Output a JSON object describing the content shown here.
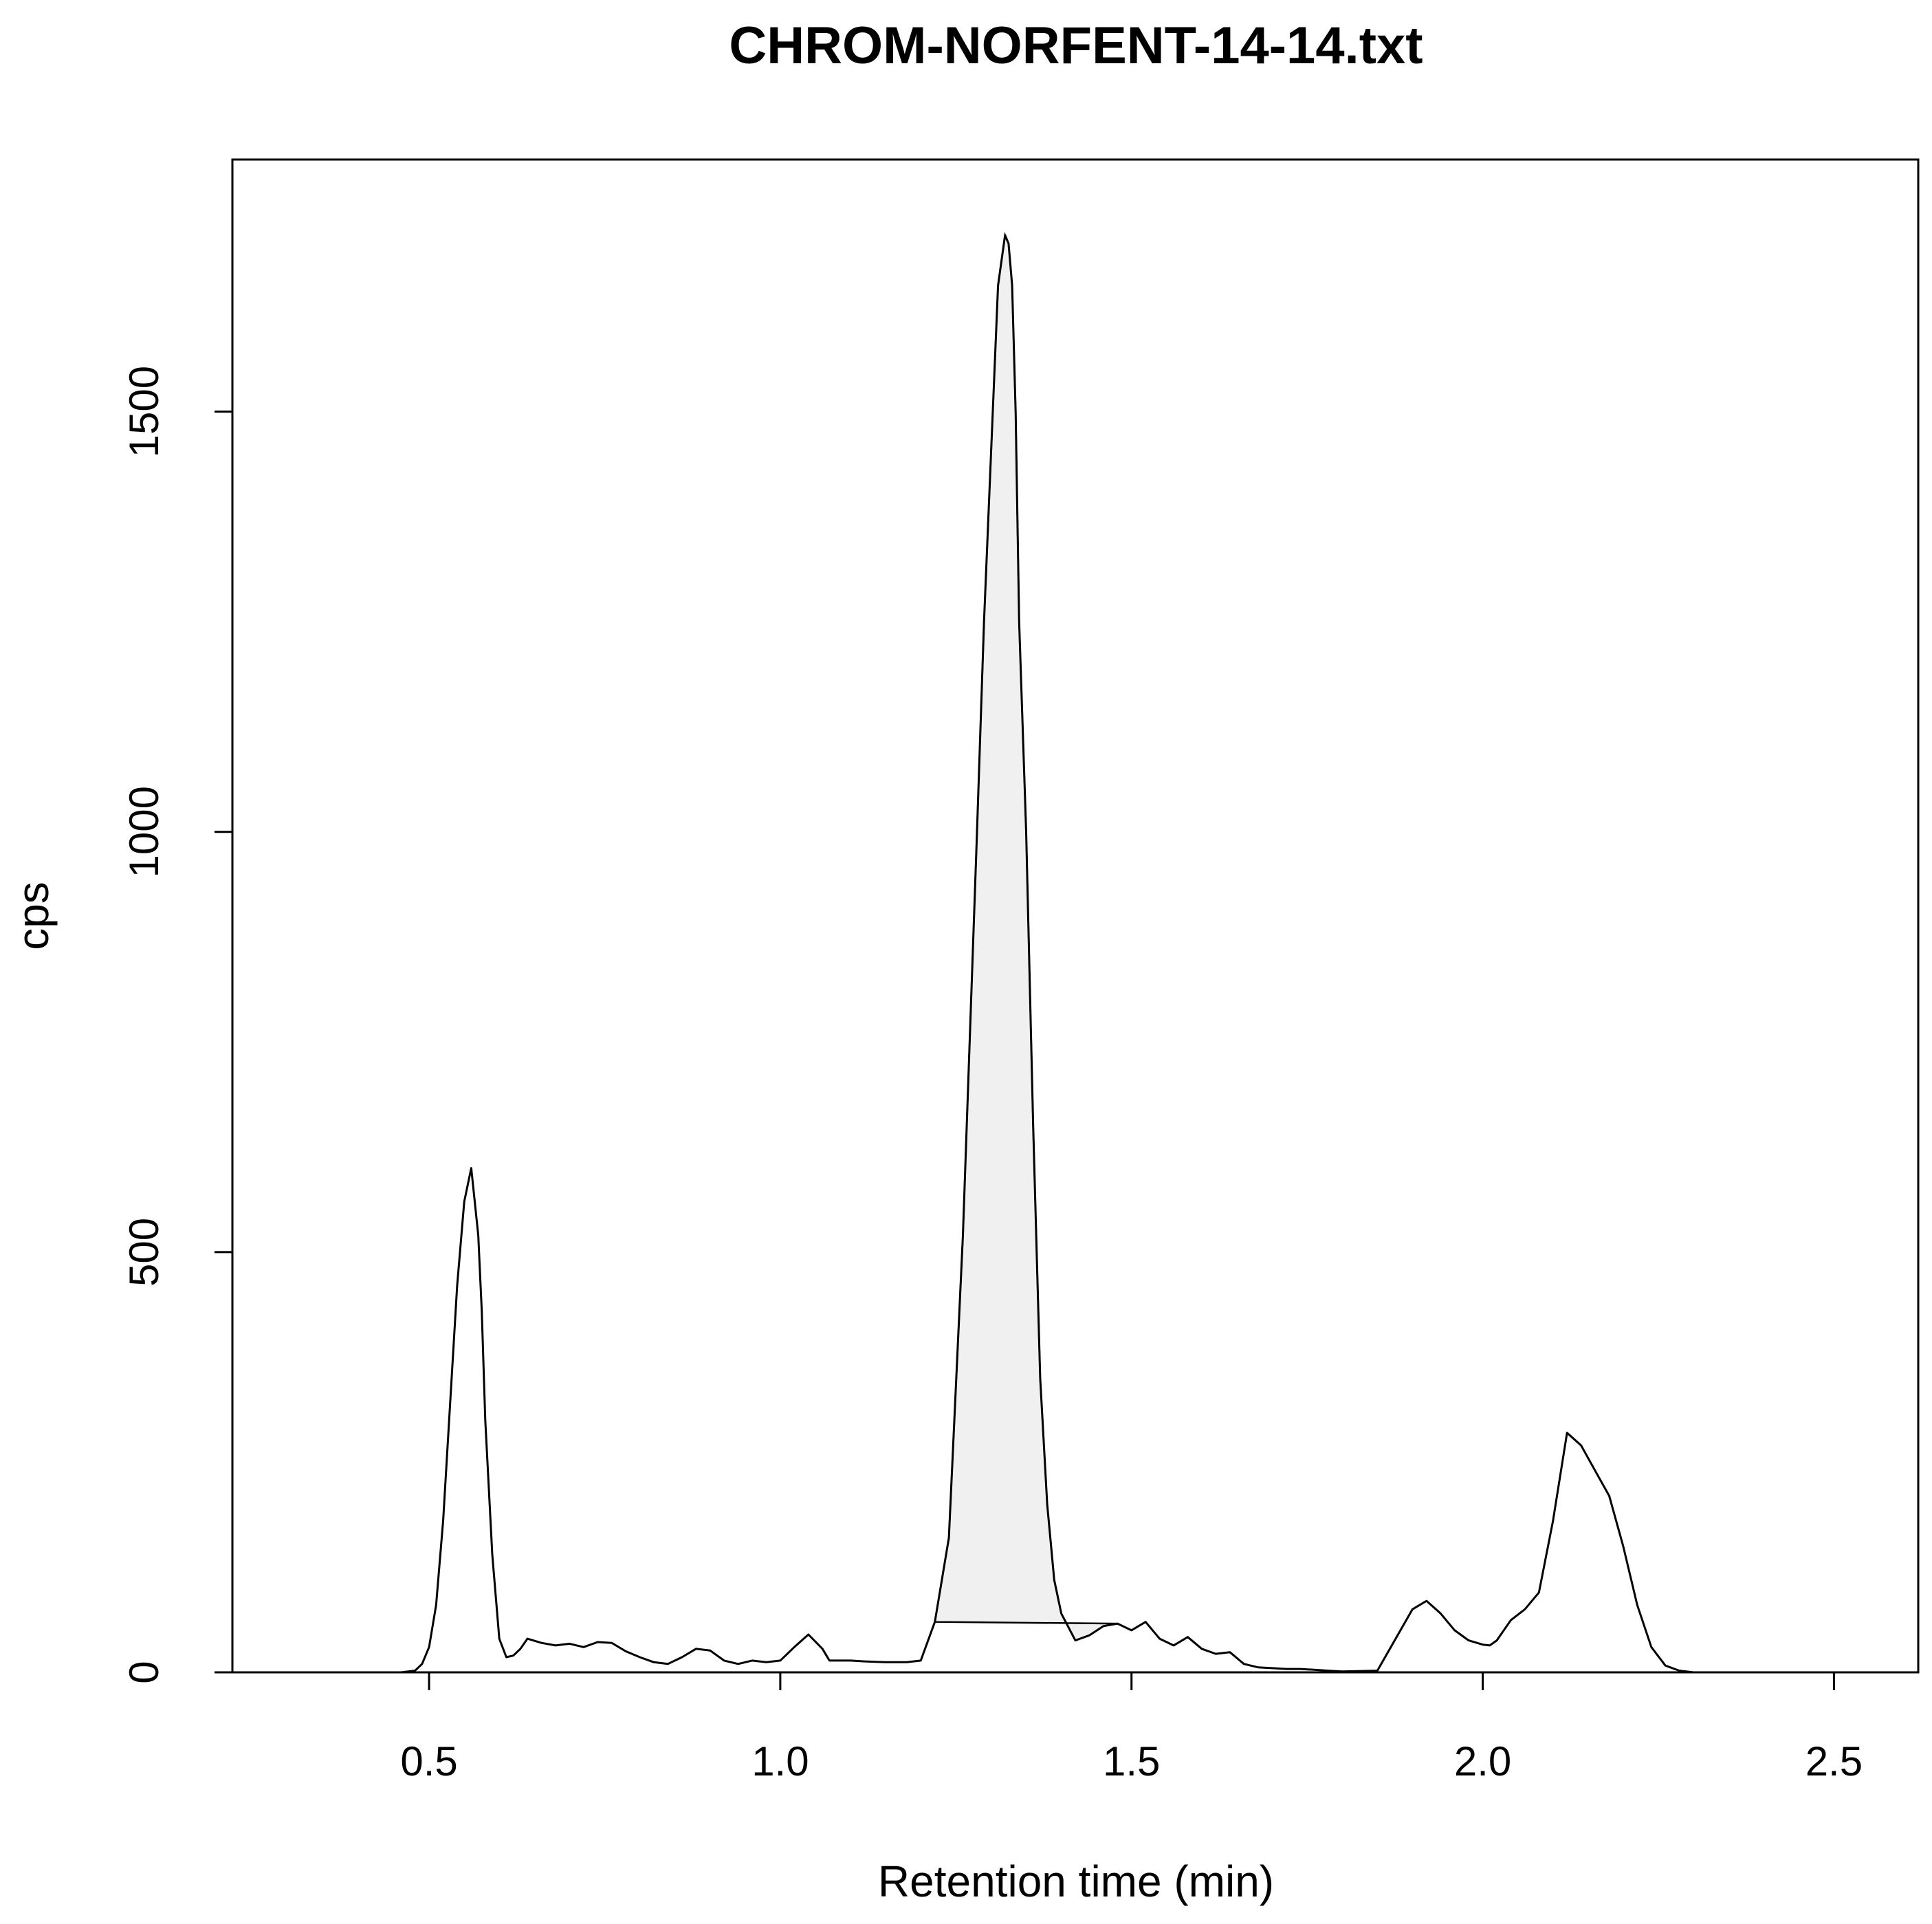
{
  "chart_data": {
    "type": "line",
    "title": "CHROM-NORFENT-14-14.txt",
    "xlabel": "Retention time (min)",
    "ylabel": "cps",
    "xlim": [
      0.22,
      2.62
    ],
    "ylim": [
      0,
      1800
    ],
    "x_ticks": [
      0.5,
      1.0,
      1.5,
      2.0,
      2.5
    ],
    "x_tick_labels": [
      "0.5",
      "1.0",
      "1.5",
      "2.0",
      "2.5"
    ],
    "y_ticks": [
      0,
      500,
      1000,
      1500
    ],
    "y_tick_labels": [
      "0",
      "500",
      "1000",
      "1500"
    ],
    "grid": false,
    "colors": {
      "line": "#000000",
      "fill": "#f0f0f0",
      "background": "#ffffff"
    },
    "series": [
      {
        "x": [
          0.46,
          0.48,
          0.49,
          0.5,
          0.51,
          0.52,
          0.53,
          0.54,
          0.55,
          0.56,
          0.57,
          0.575,
          0.58,
          0.59,
          0.6,
          0.61,
          0.62,
          0.63,
          0.64,
          0.66,
          0.68,
          0.7,
          0.72,
          0.74,
          0.76,
          0.78,
          0.8,
          0.82,
          0.84,
          0.86,
          0.88,
          0.9,
          0.92,
          0.94,
          0.96,
          0.98,
          1.0,
          1.02,
          1.04,
          1.06,
          1.07,
          1.08,
          1.1,
          1.12,
          1.15,
          1.18,
          1.2,
          1.22,
          1.24,
          1.26,
          1.28,
          1.29,
          1.3,
          1.31,
          1.32,
          1.325,
          1.33,
          1.335,
          1.34,
          1.35,
          1.36,
          1.37,
          1.38,
          1.39,
          1.4,
          1.42,
          1.44,
          1.46,
          1.48,
          1.5,
          1.52,
          1.54,
          1.56,
          1.58,
          1.6,
          1.62,
          1.64,
          1.66,
          1.68,
          1.7,
          1.72,
          1.74,
          1.76,
          1.78,
          1.8,
          1.85,
          1.9,
          1.92,
          1.94,
          1.96,
          1.98,
          2.0,
          2.01,
          2.02,
          2.04,
          2.06,
          2.08,
          2.1,
          2.12,
          2.14,
          2.16,
          2.18,
          2.2,
          2.22,
          2.24,
          2.26,
          2.28,
          2.3,
          2.32,
          2.34,
          2.35
        ],
        "values": [
          0,
          2,
          10,
          30,
          80,
          180,
          320,
          460,
          560,
          600,
          520,
          430,
          300,
          140,
          40,
          18,
          20,
          28,
          40,
          35,
          32,
          34,
          30,
          36,
          35,
          25,
          18,
          12,
          10,
          18,
          28,
          26,
          14,
          10,
          14,
          12,
          14,
          30,
          45,
          28,
          14,
          14,
          14,
          13,
          12,
          12,
          14,
          60,
          160,
          520,
          1000,
          1250,
          1450,
          1650,
          1710,
          1700,
          1650,
          1500,
          1250,
          1000,
          650,
          350,
          200,
          110,
          70,
          38,
          44,
          55,
          58,
          50,
          60,
          40,
          32,
          42,
          28,
          22,
          24,
          10,
          6,
          5,
          4,
          4,
          3,
          2,
          1,
          2,
          75,
          85,
          70,
          50,
          38,
          33,
          32,
          38,
          62,
          75,
          95,
          180,
          285,
          270,
          240,
          210,
          150,
          80,
          30,
          8,
          2,
          0,
          0,
          0,
          0
        ],
        "shaded_peak": {
          "x_start": 1.22,
          "x_end": 1.48
        }
      }
    ]
  }
}
